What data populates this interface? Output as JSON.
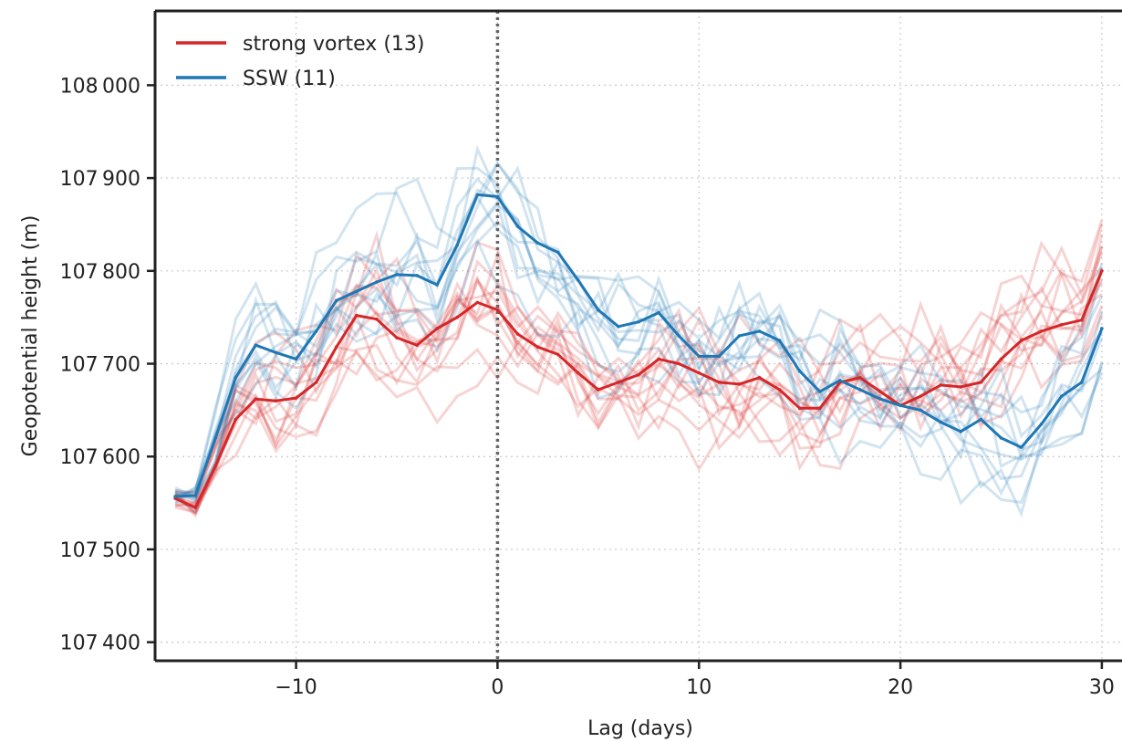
{
  "chart_data": {
    "type": "line",
    "title": "",
    "xlabel": "Lag (days)",
    "ylabel": "Geopotential height (m)",
    "xlim": [
      -17,
      31
    ],
    "ylim": [
      107380,
      108080
    ],
    "xticks": [
      -10,
      0,
      10,
      20,
      30
    ],
    "xtick_labels": [
      "−10",
      "0",
      "10",
      "20",
      "30"
    ],
    "yticks": [
      107400,
      107500,
      107600,
      107700,
      107800,
      107900,
      108000
    ],
    "ytick_labels": [
      "107 400",
      "107 500",
      "107 600",
      "107 700",
      "107 800",
      "107 900",
      "108 000"
    ],
    "grid": true,
    "vline_x": 0,
    "legend": {
      "placement": "top-left",
      "entries": [
        "strong vortex (13)",
        "SSW (11)"
      ]
    },
    "colors": {
      "strong_vortex": "#d62728",
      "ssw": "#1f77b4",
      "grid": "#c8c8c8",
      "axis": "#222222",
      "vline": "#666666"
    },
    "x": [
      -16,
      -15,
      -14,
      -13,
      -12,
      -11,
      -10,
      -9,
      -8,
      -7,
      -6,
      -5,
      -4,
      -3,
      -2,
      -1,
      0,
      1,
      2,
      3,
      4,
      5,
      6,
      7,
      8,
      9,
      10,
      11,
      12,
      13,
      14,
      15,
      16,
      17,
      18,
      19,
      20,
      21,
      22,
      23,
      24,
      25,
      26,
      27,
      28,
      29,
      30
    ],
    "series": [
      {
        "key": "strong_vortex",
        "values": [
          107555,
          107545,
          107590,
          107640,
          107662,
          107660,
          107663,
          107680,
          107718,
          107752,
          107748,
          107728,
          107720,
          107738,
          107750,
          107766,
          107758,
          107732,
          107718,
          107710,
          107690,
          107672,
          107680,
          107688,
          107705,
          107700,
          107690,
          107680,
          107678,
          107685,
          107672,
          107652,
          107652,
          107680,
          107685,
          107670,
          107655,
          107665,
          107677,
          107675,
          107680,
          107705,
          107725,
          107735,
          107742,
          107747,
          107800
        ]
      },
      {
        "key": "ssw",
        "values": [
          107557,
          107558,
          107620,
          107685,
          107720,
          107712,
          107705,
          107735,
          107768,
          107778,
          107788,
          107796,
          107795,
          107785,
          107828,
          107882,
          107880,
          107848,
          107830,
          107820,
          107790,
          107758,
          107740,
          107745,
          107755,
          107730,
          107708,
          107708,
          107730,
          107735,
          107725,
          107692,
          107670,
          107682,
          107672,
          107662,
          107655,
          107650,
          107637,
          107627,
          107640,
          107620,
          107610,
          107635,
          107665,
          107680,
          107738
        ]
      }
    ]
  }
}
